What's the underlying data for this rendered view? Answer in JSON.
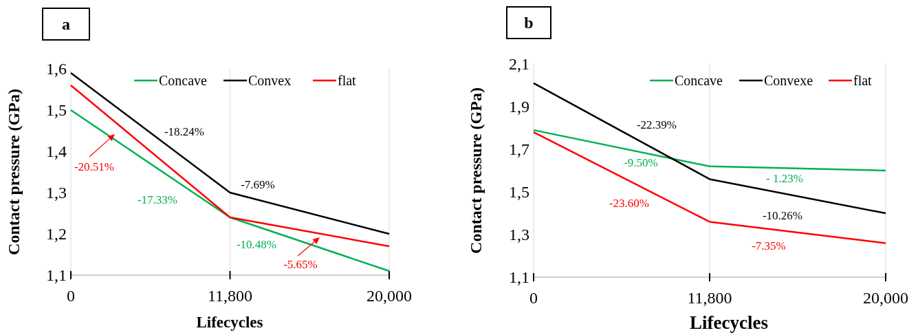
{
  "chart_data": [
    {
      "type": "line",
      "title": "a",
      "xlabel": "Lifecycles",
      "ylabel": "Contact pressure (GPa)",
      "categories": [
        "0",
        "11,800",
        "20,000"
      ],
      "series": [
        {
          "name": "Concave",
          "color": "#00b050",
          "values": [
            1.5,
            1.24,
            1.11
          ]
        },
        {
          "name": "Convex",
          "color": "#000000",
          "values": [
            1.59,
            1.3,
            1.2
          ]
        },
        {
          "name": "flat",
          "color": "#ff0000",
          "values": [
            1.56,
            1.24,
            1.17
          ]
        }
      ],
      "ylim": [
        1.1,
        1.6
      ],
      "yticks": [
        {
          "value": 1.1,
          "label": "1,1"
        },
        {
          "value": 1.2,
          "label": "1,2"
        },
        {
          "value": 1.3,
          "label": "1,3"
        },
        {
          "value": 1.4,
          "label": "1,4"
        },
        {
          "value": 1.5,
          "label": "1,5"
        },
        {
          "value": 1.6,
          "label": "1,6"
        }
      ],
      "grid": "x",
      "legend": "top right",
      "annotations": [
        "-18.24%",
        "-20.51%",
        "-17.33%",
        "-7.69%",
        "-10.48%",
        "-5.65%"
      ]
    },
    {
      "type": "line",
      "title": "b",
      "xlabel": "Lifecycles",
      "ylabel": "Contact pressure (GPa)",
      "categories": [
        "0",
        "11,800",
        "20,000"
      ],
      "series": [
        {
          "name": "Concave",
          "color": "#00b050",
          "values": [
            1.79,
            1.62,
            1.6
          ]
        },
        {
          "name": "Convexe",
          "color": "#000000",
          "values": [
            2.01,
            1.56,
            1.4
          ]
        },
        {
          "name": "flat",
          "color": "#ff0000",
          "values": [
            1.78,
            1.36,
            1.26
          ]
        }
      ],
      "ylim": [
        1.1,
        2.1
      ],
      "yticks": [
        {
          "value": 1.1,
          "label": "1,1"
        },
        {
          "value": 1.3,
          "label": "1,3"
        },
        {
          "value": 1.5,
          "label": "1,5"
        },
        {
          "value": 1.7,
          "label": "1,7"
        },
        {
          "value": 1.9,
          "label": "1,9"
        },
        {
          "value": 2.1,
          "label": "2,1"
        }
      ],
      "grid": "x",
      "legend": "top right",
      "annotations": [
        "-22.39%",
        "-9.50%",
        "- 1.23%",
        "-23.60%",
        "-10.26%",
        "-7.35%"
      ]
    }
  ]
}
